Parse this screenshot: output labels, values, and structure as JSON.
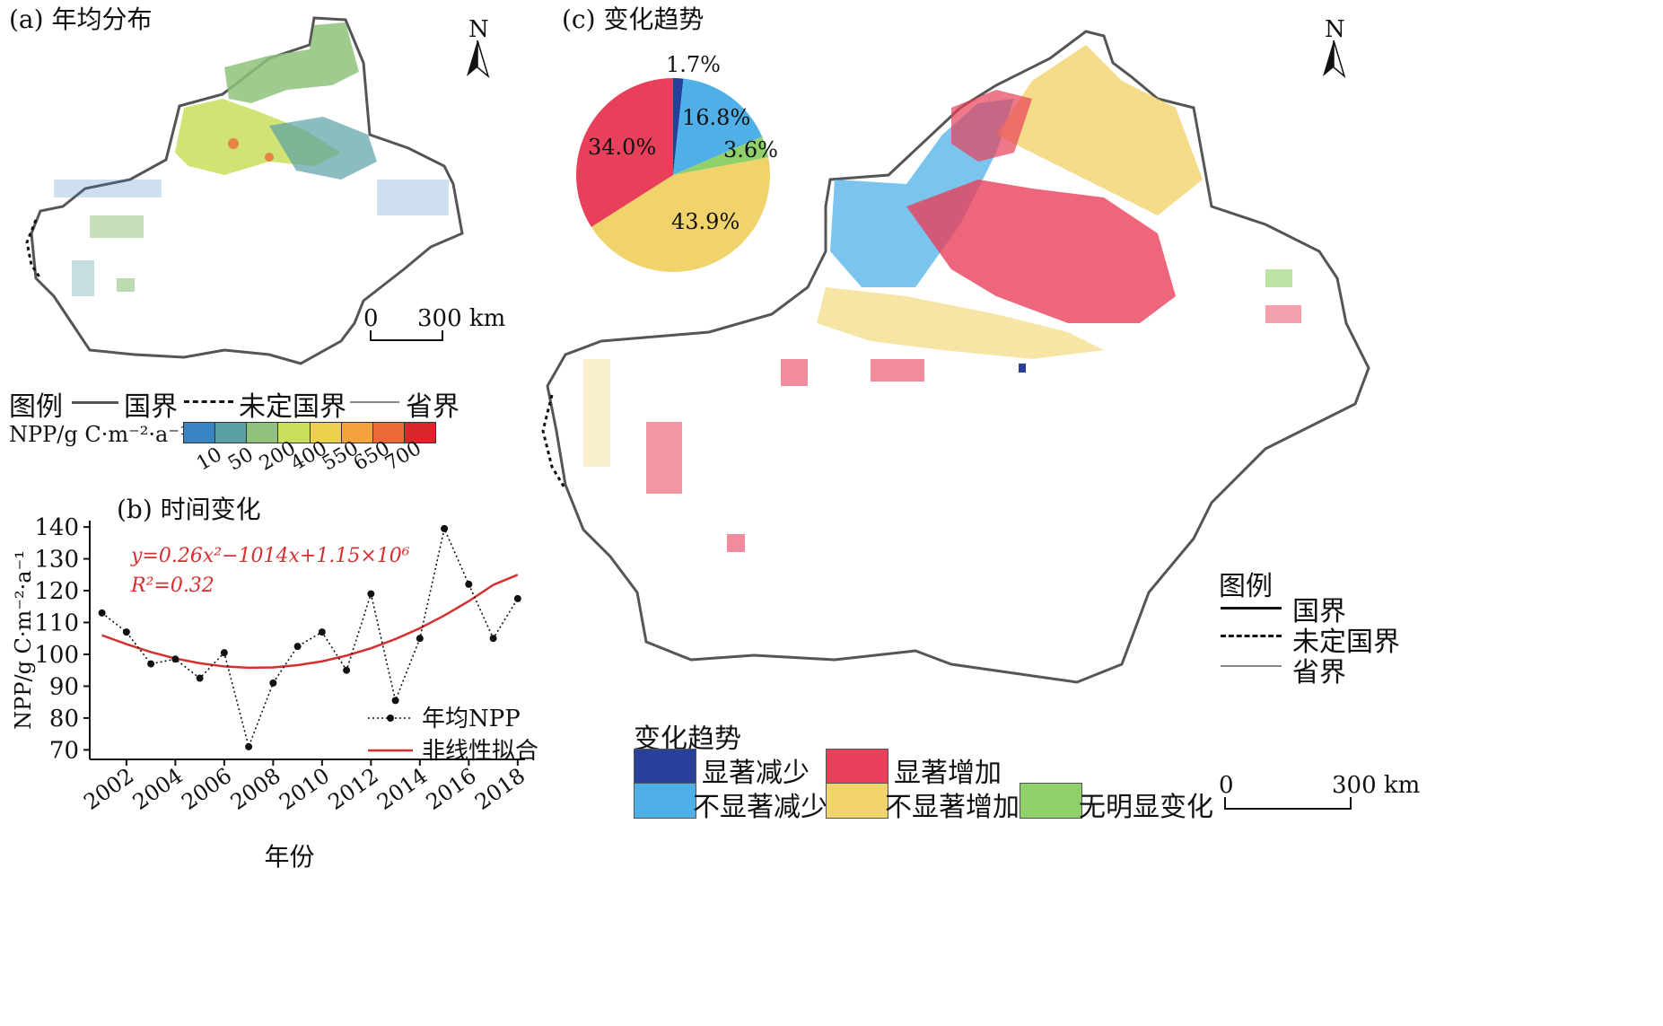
{
  "panel_a": {
    "title": "(a) 年均分布",
    "north": "N",
    "scale": {
      "zero": "0",
      "end": "300 km"
    },
    "legend": {
      "heading": "图例",
      "items": [
        "国界",
        "未定国界",
        "省界"
      ],
      "colorbar_label": "NPP/g C·m⁻²·a⁻¹",
      "colorbar_colors": [
        "#3a84c4",
        "#5aa0a5",
        "#8fc27a",
        "#c9df5b",
        "#ecd24c",
        "#f4a23c",
        "#ec6a37",
        "#d9262b"
      ],
      "ticks": [
        "10",
        "50",
        "200",
        "400",
        "550",
        "650",
        "700"
      ]
    }
  },
  "panel_b": {
    "title": "(b) 时间变化",
    "equation": "y=0.26x²−1014x+1.15×10⁶",
    "r2": "R²=0.32",
    "legend": [
      "年均NPP",
      "非线性拟合"
    ]
  },
  "panel_c": {
    "title": "(c) 变化趋势",
    "north": "N",
    "pie": [
      {
        "label": "显著减少",
        "value": 1.7,
        "text": "1.7%",
        "color": "#27409b"
      },
      {
        "label": "不显著减少",
        "value": 16.8,
        "text": "16.8%",
        "color": "#4fb0e8"
      },
      {
        "label": "无明显变化",
        "value": 3.6,
        "text": "3.6%",
        "color": "#8fd06a"
      },
      {
        "label": "不显著增加",
        "value": 43.9,
        "text": "43.9%",
        "color": "#f1d36b"
      },
      {
        "label": "显著增加",
        "value": 34.0,
        "text": "34.0%",
        "color": "#e8405a"
      }
    ],
    "map_legend": {
      "heading": "图例",
      "items": [
        "国界",
        "未定国界",
        "省界"
      ]
    },
    "trend_legend": {
      "heading": "变化趋势",
      "items": [
        {
          "label": "显著减少",
          "color": "#27409b"
        },
        {
          "label": "显著增加",
          "color": "#e8405a"
        },
        {
          "label": "不显著减少",
          "color": "#4fb0e8"
        },
        {
          "label": "不显著增加",
          "color": "#f1d36b"
        },
        {
          "label": "无明显变化",
          "color": "#8fd06a"
        }
      ]
    },
    "scale": {
      "zero": "0",
      "end": "300 km"
    }
  },
  "chart_data": {
    "type": "line",
    "title": "(b) 时间变化",
    "xlabel": "年份",
    "ylabel": "NPP/g C·m⁻²·a⁻¹",
    "x": [
      2001,
      2002,
      2003,
      2004,
      2005,
      2006,
      2007,
      2008,
      2009,
      2010,
      2011,
      2012,
      2013,
      2014,
      2015,
      2016,
      2017,
      2018
    ],
    "xticks": [
      2002,
      2004,
      2006,
      2008,
      2010,
      2012,
      2014,
      2016,
      2018
    ],
    "yticks": [
      70,
      80,
      90,
      100,
      110,
      120,
      130,
      140
    ],
    "xlim": [
      2000.5,
      2018.3
    ],
    "ylim": [
      67,
      142
    ],
    "series": [
      {
        "name": "年均NPP",
        "values": [
          113,
          107,
          97,
          98.5,
          92.5,
          100.5,
          71,
          91,
          102.5,
          107,
          95,
          119,
          85.5,
          105,
          139.5,
          122,
          105,
          117.5
        ],
        "style": "dotted-markers",
        "color": "#111111"
      },
      {
        "name": "非线性拟合",
        "values": [
          106,
          103.2,
          100.7,
          98.7,
          97.2,
          96.2,
          95.8,
          95.9,
          96.6,
          97.8,
          99.6,
          101.9,
          104.8,
          108.2,
          112.2,
          116.7,
          121.8,
          125
        ],
        "style": "solid",
        "color": "#d62f2f"
      }
    ],
    "grid": false
  }
}
